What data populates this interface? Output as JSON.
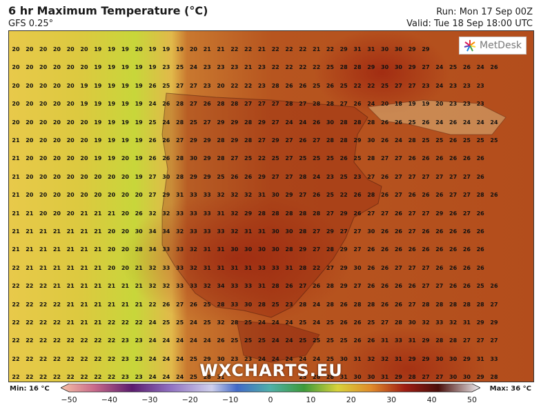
{
  "header": {
    "title": "6 hr Maximum Temperature (°C)",
    "model": "GFS 0.25°",
    "run": "Run: Mon 17 Sep 00Z",
    "valid": "Valid: Tue 18 Sep 18:00 UTC"
  },
  "logo": {
    "text": "MetDesk"
  },
  "watermark": "WXCHARTS.EU",
  "colorbar": {
    "min_label": "Min: 16 °C",
    "max_label": "Max: 36 °C",
    "ticks": [
      "−50",
      "−40",
      "−30",
      "−20",
      "−10",
      "0",
      "10",
      "20",
      "30",
      "40",
      "50"
    ],
    "range": [
      -50,
      50
    ]
  },
  "grid": [
    [
      "20",
      "20",
      "20",
      "20",
      "20",
      "20",
      "19",
      "19",
      "19",
      "20",
      "19",
      "19",
      "19",
      "20",
      "21",
      "21",
      "22",
      "22",
      "21",
      "22",
      "22",
      "22",
      "21",
      "22",
      "29",
      "31",
      "31",
      "30",
      "30",
      "29",
      "29",
      "",
      "",
      "",
      "",
      ""
    ],
    [
      "20",
      "20",
      "20",
      "20",
      "20",
      "20",
      "19",
      "19",
      "19",
      "19",
      "19",
      "23",
      "25",
      "24",
      "23",
      "23",
      "23",
      "21",
      "23",
      "22",
      "22",
      "22",
      "22",
      "25",
      "28",
      "28",
      "29",
      "30",
      "30",
      "29",
      "27",
      "24",
      "25",
      "26",
      "24",
      "26"
    ],
    [
      "20",
      "20",
      "20",
      "20",
      "20",
      "19",
      "19",
      "19",
      "19",
      "19",
      "26",
      "25",
      "27",
      "27",
      "23",
      "20",
      "22",
      "22",
      "23",
      "28",
      "26",
      "26",
      "25",
      "26",
      "25",
      "22",
      "22",
      "25",
      "27",
      "27",
      "23",
      "24",
      "23",
      "23",
      "23",
      ""
    ],
    [
      "20",
      "20",
      "20",
      "20",
      "20",
      "19",
      "19",
      "19",
      "19",
      "19",
      "24",
      "26",
      "28",
      "27",
      "26",
      "28",
      "28",
      "27",
      "27",
      "27",
      "28",
      "27",
      "28",
      "28",
      "27",
      "26",
      "24",
      "20",
      "18",
      "19",
      "19",
      "20",
      "23",
      "23",
      "23",
      ""
    ],
    [
      "20",
      "20",
      "20",
      "20",
      "20",
      "20",
      "19",
      "19",
      "19",
      "19",
      "25",
      "24",
      "28",
      "25",
      "27",
      "29",
      "29",
      "28",
      "29",
      "27",
      "24",
      "24",
      "26",
      "30",
      "28",
      "28",
      "28",
      "26",
      "26",
      "25",
      "26",
      "24",
      "26",
      "24",
      "24",
      "24"
    ],
    [
      "21",
      "20",
      "20",
      "20",
      "20",
      "20",
      "19",
      "19",
      "19",
      "19",
      "26",
      "26",
      "27",
      "29",
      "29",
      "28",
      "29",
      "28",
      "27",
      "29",
      "27",
      "26",
      "27",
      "28",
      "28",
      "29",
      "30",
      "26",
      "24",
      "28",
      "25",
      "25",
      "26",
      "25",
      "25",
      "25"
    ],
    [
      "21",
      "20",
      "20",
      "20",
      "20",
      "20",
      "19",
      "19",
      "20",
      "19",
      "26",
      "26",
      "28",
      "30",
      "29",
      "28",
      "27",
      "25",
      "22",
      "25",
      "27",
      "25",
      "25",
      "25",
      "26",
      "25",
      "28",
      "27",
      "27",
      "26",
      "26",
      "26",
      "26",
      "26",
      "26",
      ""
    ],
    [
      "21",
      "20",
      "20",
      "20",
      "20",
      "20",
      "20",
      "20",
      "20",
      "19",
      "27",
      "30",
      "28",
      "29",
      "29",
      "25",
      "26",
      "26",
      "29",
      "27",
      "27",
      "28",
      "24",
      "23",
      "25",
      "23",
      "27",
      "26",
      "27",
      "27",
      "27",
      "27",
      "27",
      "27",
      "26",
      ""
    ],
    [
      "21",
      "20",
      "20",
      "20",
      "20",
      "20",
      "20",
      "20",
      "20",
      "20",
      "27",
      "29",
      "31",
      "33",
      "33",
      "32",
      "32",
      "32",
      "31",
      "30",
      "29",
      "27",
      "26",
      "25",
      "22",
      "26",
      "28",
      "26",
      "27",
      "26",
      "26",
      "26",
      "27",
      "27",
      "28",
      "26"
    ],
    [
      "21",
      "21",
      "20",
      "20",
      "20",
      "21",
      "21",
      "21",
      "20",
      "26",
      "32",
      "32",
      "33",
      "33",
      "33",
      "31",
      "32",
      "29",
      "28",
      "28",
      "28",
      "28",
      "28",
      "27",
      "29",
      "26",
      "27",
      "27",
      "26",
      "27",
      "27",
      "29",
      "26",
      "27",
      "26",
      ""
    ],
    [
      "21",
      "21",
      "21",
      "21",
      "21",
      "21",
      "21",
      "20",
      "20",
      "30",
      "34",
      "34",
      "32",
      "33",
      "33",
      "33",
      "32",
      "31",
      "31",
      "30",
      "30",
      "28",
      "27",
      "29",
      "27",
      "27",
      "30",
      "26",
      "26",
      "27",
      "26",
      "26",
      "26",
      "26",
      "26",
      ""
    ],
    [
      "21",
      "21",
      "21",
      "21",
      "21",
      "21",
      "21",
      "20",
      "20",
      "28",
      "34",
      "33",
      "33",
      "32",
      "31",
      "31",
      "30",
      "30",
      "30",
      "30",
      "28",
      "29",
      "27",
      "28",
      "29",
      "27",
      "26",
      "26",
      "26",
      "26",
      "26",
      "26",
      "26",
      "26",
      "26",
      ""
    ],
    [
      "22",
      "21",
      "21",
      "21",
      "21",
      "21",
      "21",
      "20",
      "20",
      "21",
      "32",
      "33",
      "33",
      "32",
      "31",
      "31",
      "31",
      "31",
      "33",
      "33",
      "31",
      "28",
      "22",
      "27",
      "29",
      "30",
      "26",
      "26",
      "27",
      "27",
      "27",
      "26",
      "26",
      "26",
      "26",
      ""
    ],
    [
      "22",
      "22",
      "22",
      "21",
      "21",
      "21",
      "21",
      "21",
      "21",
      "21",
      "32",
      "32",
      "33",
      "33",
      "32",
      "34",
      "33",
      "33",
      "31",
      "28",
      "26",
      "27",
      "26",
      "28",
      "29",
      "27",
      "26",
      "26",
      "26",
      "26",
      "27",
      "27",
      "26",
      "26",
      "25",
      "26"
    ],
    [
      "22",
      "22",
      "22",
      "22",
      "21",
      "21",
      "21",
      "21",
      "21",
      "21",
      "22",
      "26",
      "27",
      "26",
      "25",
      "28",
      "33",
      "30",
      "28",
      "25",
      "23",
      "28",
      "24",
      "28",
      "26",
      "28",
      "28",
      "26",
      "26",
      "27",
      "28",
      "28",
      "28",
      "28",
      "28",
      "27"
    ],
    [
      "22",
      "22",
      "22",
      "22",
      "21",
      "21",
      "21",
      "22",
      "22",
      "22",
      "24",
      "25",
      "25",
      "24",
      "25",
      "32",
      "28",
      "25",
      "24",
      "24",
      "24",
      "25",
      "24",
      "25",
      "26",
      "26",
      "25",
      "27",
      "28",
      "30",
      "32",
      "33",
      "32",
      "31",
      "29",
      "29"
    ],
    [
      "22",
      "22",
      "22",
      "22",
      "22",
      "22",
      "22",
      "22",
      "23",
      "23",
      "24",
      "24",
      "24",
      "24",
      "24",
      "26",
      "25",
      "25",
      "25",
      "24",
      "24",
      "25",
      "25",
      "25",
      "25",
      "26",
      "26",
      "31",
      "33",
      "31",
      "29",
      "28",
      "28",
      "27",
      "27",
      "27"
    ],
    [
      "22",
      "22",
      "22",
      "22",
      "22",
      "22",
      "22",
      "22",
      "23",
      "23",
      "24",
      "24",
      "24",
      "25",
      "29",
      "30",
      "23",
      "23",
      "24",
      "24",
      "24",
      "24",
      "24",
      "25",
      "30",
      "31",
      "32",
      "32",
      "31",
      "29",
      "29",
      "30",
      "30",
      "29",
      "31",
      "33"
    ],
    [
      "22",
      "22",
      "22",
      "22",
      "22",
      "22",
      "22",
      "22",
      "23",
      "23",
      "24",
      "24",
      "24",
      "25",
      "28",
      "31",
      "",
      "",
      "",
      "",
      "",
      "25",
      "28",
      "28",
      "31",
      "30",
      "30",
      "31",
      "29",
      "28",
      "27",
      "27",
      "30",
      "30",
      "29",
      "28"
    ]
  ]
}
